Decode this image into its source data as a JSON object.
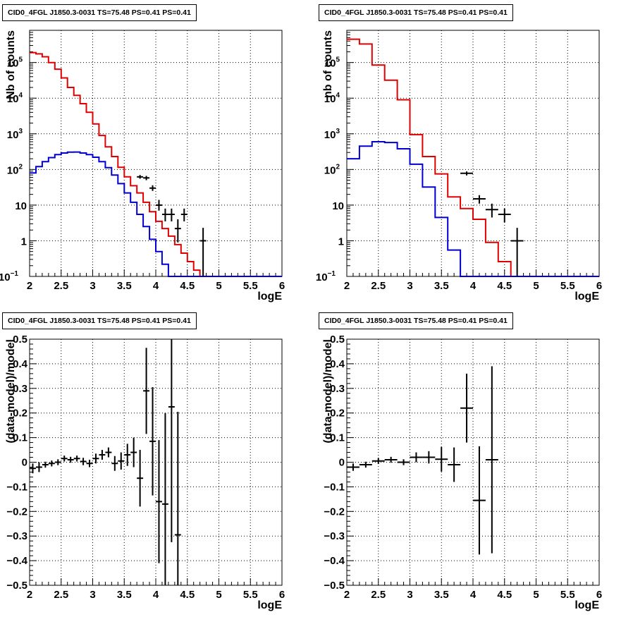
{
  "chart_data": [
    {
      "type": "line",
      "title": "CID0_4FGL J1850.3-0031 TS=75.48 PS=0.41 PS=0.41",
      "xlabel": "logE",
      "ylabel": "Nb of counts",
      "xlim": [
        2,
        6
      ],
      "ylim": [
        0.1,
        800000
      ],
      "yscale": "log",
      "grid": true,
      "x_ticks": [
        "2",
        "2.5",
        "3",
        "3.5",
        "4",
        "4.5",
        "5",
        "5.5",
        "6"
      ],
      "y_ticks": [
        {
          "label": "10",
          "sup": "−1",
          "value": 0.1
        },
        {
          "label": "1",
          "sup": "",
          "value": 1
        },
        {
          "label": "10",
          "sup": "",
          "value": 10
        },
        {
          "label": "10",
          "sup": "2",
          "value": 100
        },
        {
          "label": "10",
          "sup": "3",
          "value": 1000
        },
        {
          "label": "10",
          "sup": "4",
          "value": 10000
        },
        {
          "label": "10",
          "sup": "5",
          "value": 100000
        }
      ],
      "bin_edges_start": 2.0,
      "bin_width": 0.1,
      "series": [
        {
          "color": "#e00000",
          "style": "step",
          "values": [
            190000,
            175000,
            145000,
            100000,
            65000,
            37000,
            20000,
            12000,
            7000,
            4000,
            1900,
            900,
            430,
            230,
            115,
            62,
            35,
            22,
            12,
            6.5,
            3.5,
            2.2,
            1.35,
            0.78,
            0.45,
            0.26,
            0.15,
            0.1,
            0.1,
            0.1,
            0.1,
            0.1,
            0.1,
            0.1,
            0.1,
            0.1,
            0.1,
            0.1,
            0.1,
            0.1
          ]
        },
        {
          "color": "#0000d0",
          "style": "step",
          "values": [
            80,
            120,
            165,
            215,
            260,
            290,
            305,
            308,
            290,
            260,
            220,
            165,
            112,
            70,
            40,
            22,
            12,
            5.5,
            2.5,
            1.1,
            0.5,
            0.22,
            0.1,
            0.1,
            0.1,
            0.1,
            0.1,
            0.1,
            0.1,
            0.1,
            0.1,
            0.1,
            0.1,
            0.1,
            0.1,
            0.1,
            0.1,
            0.1,
            0.1,
            0.1
          ]
        },
        {
          "color": "#000000",
          "style": "points",
          "points": [
            {
              "x": 3.75,
              "y": 62,
              "lo": 55,
              "hi": 70
            },
            {
              "x": 3.85,
              "y": 58,
              "lo": 50,
              "hi": 66
            },
            {
              "x": 3.95,
              "y": 30,
              "lo": 25,
              "hi": 36
            },
            {
              "x": 4.05,
              "y": 10,
              "lo": 7,
              "hi": 14
            },
            {
              "x": 4.15,
              "y": 5.5,
              "lo": 3.5,
              "hi": 8
            },
            {
              "x": 4.25,
              "y": 5.5,
              "lo": 3.5,
              "hi": 8
            },
            {
              "x": 4.35,
              "y": 2.2,
              "lo": 0.9,
              "hi": 4
            },
            {
              "x": 4.45,
              "y": 5.5,
              "lo": 3.5,
              "hi": 8
            },
            {
              "x": 4.75,
              "y": 1,
              "lo": 0.1,
              "hi": 2.3
            }
          ]
        }
      ]
    },
    {
      "type": "line",
      "title": "CID0_4FGL J1850.3-0031 TS=75.48 PS=0.41 PS=0.41",
      "xlabel": "logE",
      "ylabel": "nb of counts",
      "xlim": [
        2,
        6
      ],
      "ylim": [
        0.1,
        800000
      ],
      "yscale": "log",
      "grid": true,
      "x_ticks": [
        "2",
        "2.5",
        "3",
        "3.5",
        "4",
        "4.5",
        "5",
        "5.5",
        "6"
      ],
      "y_ticks": [
        {
          "label": "10",
          "sup": "−1",
          "value": 0.1
        },
        {
          "label": "1",
          "sup": "",
          "value": 1
        },
        {
          "label": "10",
          "sup": "",
          "value": 10
        },
        {
          "label": "10",
          "sup": "2",
          "value": 100
        },
        {
          "label": "10",
          "sup": "3",
          "value": 1000
        },
        {
          "label": "10",
          "sup": "4",
          "value": 10000
        },
        {
          "label": "10",
          "sup": "5",
          "value": 100000
        }
      ],
      "bin_edges_start": 2.0,
      "bin_width": 0.2,
      "series": [
        {
          "color": "#e00000",
          "style": "step",
          "values": [
            450000,
            330000,
            85000,
            32000,
            9000,
            950,
            230,
            75,
            17,
            8,
            4,
            0.9,
            0.26,
            0.1,
            0.1,
            0.1,
            0.1,
            0.1,
            0.1,
            0.1
          ]
        },
        {
          "color": "#0000d0",
          "style": "step",
          "values": [
            200,
            450,
            600,
            570,
            380,
            140,
            32,
            4.5,
            0.55,
            0.1,
            0.1,
            0.1,
            0.1,
            0.1,
            0.1,
            0.1,
            0.1,
            0.1,
            0.1,
            0.1
          ]
        },
        {
          "color": "#000000",
          "style": "points",
          "points": [
            {
              "x": 3.9,
              "y": 78,
              "lo": 68,
              "hi": 88
            },
            {
              "x": 4.1,
              "y": 15,
              "lo": 11,
              "hi": 19
            },
            {
              "x": 4.3,
              "y": 7.5,
              "lo": 4.5,
              "hi": 11
            },
            {
              "x": 4.5,
              "y": 5.5,
              "lo": 3.3,
              "hi": 8
            },
            {
              "x": 4.7,
              "y": 1,
              "lo": 0.1,
              "hi": 2.3
            }
          ]
        }
      ]
    },
    {
      "type": "scatter",
      "title": "CID0_4FGL J1850.3-0031 TS=75.48 PS=0.41 PS=0.41",
      "xlabel": "logE",
      "ylabel": "(data-model)/model",
      "xlim": [
        2,
        6
      ],
      "ylim": [
        -0.5,
        0.5
      ],
      "grid": true,
      "x_ticks": [
        "2",
        "2.5",
        "3",
        "3.5",
        "4",
        "4.5",
        "5",
        "5.5",
        "6"
      ],
      "y_ticks": [
        "−0.5",
        "−0.4",
        "−0.3",
        "−0.2",
        "−0.1",
        "0",
        "0.1",
        "0.2",
        "0.3",
        "0.4",
        "0.5"
      ],
      "xerr": 0.05,
      "points": [
        {
          "x": 2.05,
          "y": -0.025,
          "err": 0.02
        },
        {
          "x": 2.15,
          "y": -0.02,
          "err": 0.02
        },
        {
          "x": 2.25,
          "y": -0.01,
          "err": 0.012
        },
        {
          "x": 2.35,
          "y": -0.005,
          "err": 0.012
        },
        {
          "x": 2.45,
          "y": 0.0,
          "err": 0.012
        },
        {
          "x": 2.55,
          "y": 0.015,
          "err": 0.012
        },
        {
          "x": 2.65,
          "y": 0.01,
          "err": 0.012
        },
        {
          "x": 2.75,
          "y": 0.015,
          "err": 0.012
        },
        {
          "x": 2.85,
          "y": 0.003,
          "err": 0.015
        },
        {
          "x": 2.95,
          "y": -0.005,
          "err": 0.015
        },
        {
          "x": 3.05,
          "y": 0.015,
          "err": 0.02
        },
        {
          "x": 3.15,
          "y": 0.03,
          "err": 0.02
        },
        {
          "x": 3.25,
          "y": 0.04,
          "err": 0.02
        },
        {
          "x": 3.35,
          "y": -0.005,
          "err": 0.03
        },
        {
          "x": 3.45,
          "y": 0.005,
          "err": 0.035
        },
        {
          "x": 3.55,
          "y": 0.03,
          "err": 0.045
        },
        {
          "x": 3.65,
          "y": 0.04,
          "err": 0.06
        },
        {
          "x": 3.75,
          "y": -0.065,
          "err": 0.115
        },
        {
          "x": 3.85,
          "y": 0.29,
          "err": 0.175
        },
        {
          "x": 3.95,
          "y": 0.085,
          "err": 0.22
        },
        {
          "x": 4.05,
          "y": -0.16,
          "err": 0.25
        },
        {
          "x": 4.15,
          "y": -0.17,
          "err": 0.37
        },
        {
          "x": 4.25,
          "y": 0.225,
          "err": 0.55
        },
        {
          "x": 4.35,
          "y": -0.295,
          "err": 0.5
        }
      ]
    },
    {
      "type": "scatter",
      "title": "CID0_4FGL J1850.3-0031 TS=75.48 PS=0.41 PS=0.41",
      "xlabel": "logE",
      "ylabel": "(data-model)/model",
      "xlim": [
        2,
        6
      ],
      "ylim": [
        -0.5,
        0.5
      ],
      "grid": true,
      "x_ticks": [
        "2",
        "2.5",
        "3",
        "3.5",
        "4",
        "4.5",
        "5",
        "5.5",
        "6"
      ],
      "y_ticks": [
        "−0.5",
        "−0.4",
        "−0.3",
        "−0.2",
        "−0.1",
        "0",
        "0.1",
        "0.2",
        "0.3",
        "0.4",
        "0.5"
      ],
      "xerr": 0.1,
      "points": [
        {
          "x": 2.1,
          "y": -0.02,
          "err": 0.015
        },
        {
          "x": 2.3,
          "y": -0.01,
          "err": 0.012
        },
        {
          "x": 2.5,
          "y": 0.005,
          "err": 0.012
        },
        {
          "x": 2.7,
          "y": 0.01,
          "err": 0.012
        },
        {
          "x": 2.9,
          "y": 0.0,
          "err": 0.012
        },
        {
          "x": 3.1,
          "y": 0.02,
          "err": 0.02
        },
        {
          "x": 3.3,
          "y": 0.02,
          "err": 0.025
        },
        {
          "x": 3.5,
          "y": 0.012,
          "err": 0.05
        },
        {
          "x": 3.7,
          "y": -0.01,
          "err": 0.07
        },
        {
          "x": 3.9,
          "y": 0.22,
          "err": 0.14
        },
        {
          "x": 4.1,
          "y": -0.155,
          "err": 0.22
        },
        {
          "x": 4.3,
          "y": 0.01,
          "err": 0.38
        }
      ]
    }
  ]
}
